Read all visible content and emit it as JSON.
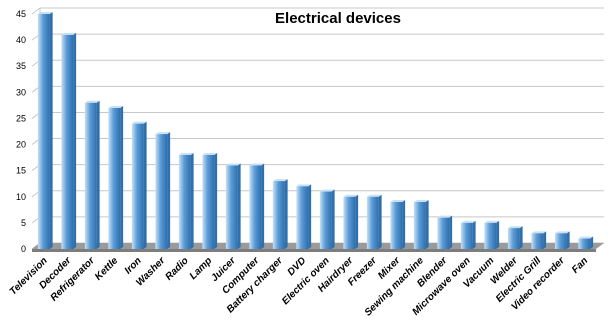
{
  "chart_data": {
    "type": "bar",
    "title": "Electrical devices",
    "xlabel": "",
    "ylabel": "",
    "ylim": [
      0,
      45
    ],
    "ytick_step": 5,
    "grid": true,
    "legend": "none",
    "categories": [
      "Television",
      "Decoder",
      "Refrigerator",
      "Kettle",
      "Iron",
      "Washer",
      "Radio",
      "Lamp",
      "Juicer",
      "Computer",
      "Battery charger",
      "DVD",
      "Electric oven",
      "Hairdryer",
      "Freezer",
      "Mixer",
      "Sewing machine",
      "Blender",
      "Microwave oven",
      "Vacuum",
      "Welder",
      "Electric Grill",
      "Video recorder",
      "Fan"
    ],
    "values": [
      45,
      41,
      28,
      27,
      24,
      22,
      18,
      18,
      16,
      16,
      13,
      12,
      11,
      10,
      10,
      9,
      9,
      6,
      5,
      5,
      4,
      3,
      3,
      2
    ],
    "colors": {
      "bar_light": "#c7e0f6",
      "bar_mid": "#5b9bd5",
      "bar_dark": "#2e6fae",
      "floor": "#9a9a9a",
      "wall": "#ffffff",
      "grid": "#c8c8c8"
    }
  }
}
